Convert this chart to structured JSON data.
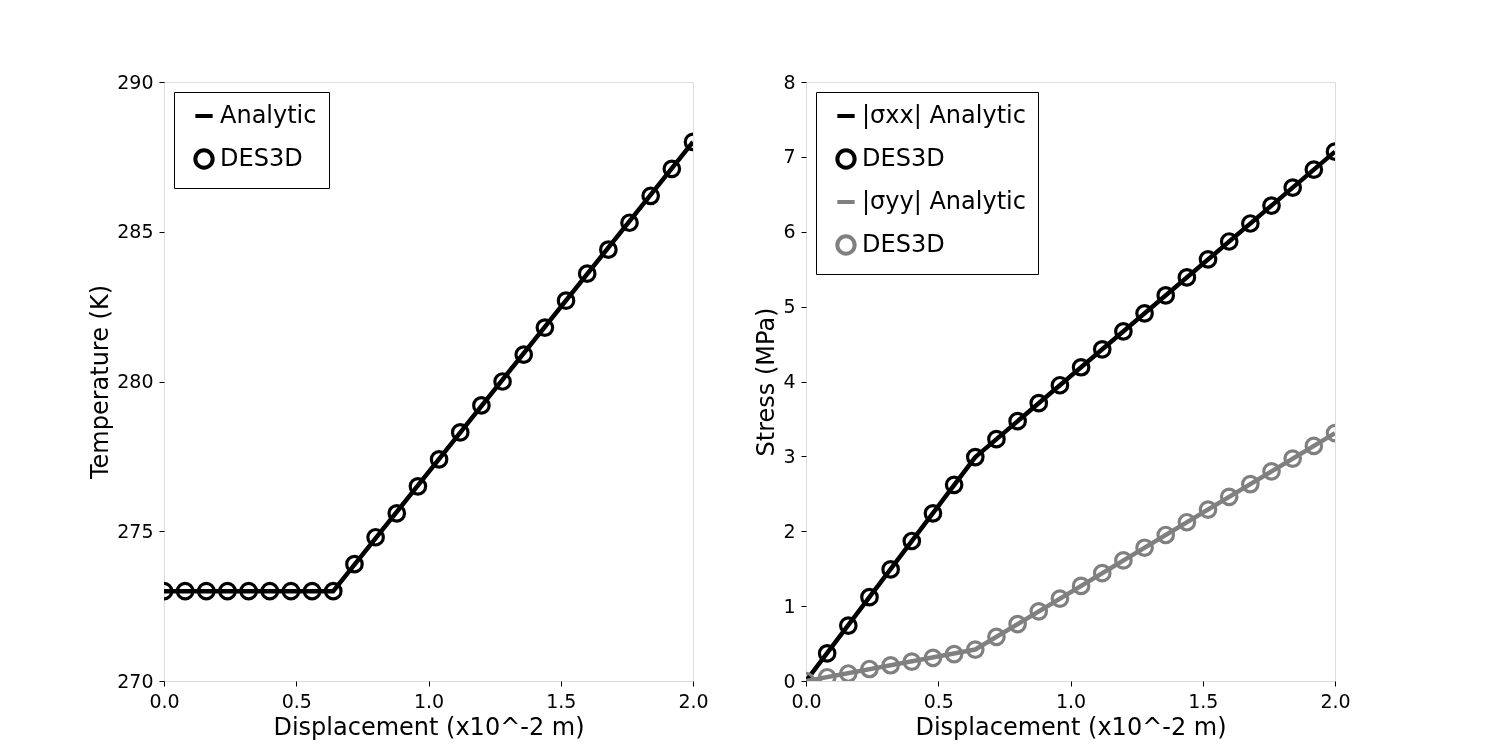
{
  "chart_data": [
    {
      "type": "line",
      "xlabel": "Displacement (x10^-2 m)",
      "ylabel": "Temperature (K)",
      "xlim": [
        0,
        2
      ],
      "ylim": [
        270,
        290
      ],
      "xticks": [
        {
          "value": 0,
          "label": "0.0"
        },
        {
          "value": 0.5,
          "label": "0.5"
        },
        {
          "value": 1,
          "label": "1.0"
        },
        {
          "value": 1.5,
          "label": "1.5"
        },
        {
          "value": 2,
          "label": "2.0"
        }
      ],
      "yticks": [
        270,
        275,
        280,
        285,
        290
      ],
      "legend": "top left",
      "x": [
        0,
        0.08,
        0.16,
        0.24,
        0.32,
        0.4,
        0.48,
        0.56,
        0.64,
        0.72,
        0.8,
        0.88,
        0.96,
        1.04,
        1.12,
        1.2,
        1.28,
        1.36,
        1.44,
        1.52,
        1.6,
        1.68,
        1.76,
        1.84,
        1.92,
        2.0
      ],
      "series": [
        {
          "name": "Analytic",
          "type": "line",
          "color": "#000000",
          "x": [
            0,
            0.64,
            2.0
          ],
          "values": [
            273,
            273,
            288
          ]
        },
        {
          "name": "DES3D",
          "type": "scatter",
          "marker": "circle",
          "color": "#000000",
          "values": [
            273,
            273,
            273,
            273,
            273,
            273,
            273,
            273,
            273,
            273.9,
            274.8,
            275.6,
            276.5,
            277.4,
            278.3,
            279.2,
            280.0,
            280.9,
            281.8,
            282.7,
            283.6,
            284.4,
            285.3,
            286.2,
            287.1,
            288.0
          ]
        }
      ]
    },
    {
      "type": "line",
      "xlabel": "Displacement (x10^-2 m)",
      "ylabel": "Stress (MPa)",
      "xlim": [
        0,
        2
      ],
      "ylim": [
        0,
        8
      ],
      "xticks": [
        {
          "value": 0,
          "label": "0.0"
        },
        {
          "value": 0.5,
          "label": "0.5"
        },
        {
          "value": 1,
          "label": "1.0"
        },
        {
          "value": 1.5,
          "label": "1.5"
        },
        {
          "value": 2,
          "label": "2.0"
        }
      ],
      "yticks": [
        0,
        1,
        2,
        3,
        4,
        5,
        6,
        7,
        8
      ],
      "legend": "top left",
      "x": [
        0,
        0.08,
        0.16,
        0.24,
        0.32,
        0.4,
        0.48,
        0.56,
        0.64,
        0.72,
        0.8,
        0.88,
        0.96,
        1.04,
        1.12,
        1.2,
        1.28,
        1.36,
        1.44,
        1.52,
        1.6,
        1.68,
        1.76,
        1.84,
        1.92,
        2.0
      ],
      "series": [
        {
          "name": "|σxx| Analytic",
          "type": "line",
          "color": "#000000",
          "x": [
            0,
            0.64,
            2.0
          ],
          "values": [
            0,
            2.99,
            7.07
          ]
        },
        {
          "name": "DES3D",
          "type": "scatter",
          "marker": "circle",
          "color": "#000000",
          "values": [
            null,
            0.37,
            0.74,
            1.12,
            1.49,
            1.87,
            2.24,
            2.62,
            2.99,
            3.23,
            3.47,
            3.71,
            3.95,
            4.19,
            4.43,
            4.67,
            4.91,
            5.15,
            5.39,
            5.63,
            5.87,
            6.11,
            6.35,
            6.59,
            6.83,
            7.07
          ]
        },
        {
          "name": "|σyy| Analytic",
          "type": "line",
          "color": "#808080",
          "x": [
            0,
            0.64,
            2.0
          ],
          "values": [
            0,
            0.42,
            3.31
          ]
        },
        {
          "name": "DES3D",
          "type": "scatter",
          "marker": "circle",
          "color": "#808080",
          "values": [
            0,
            0.05,
            0.1,
            0.16,
            0.21,
            0.26,
            0.31,
            0.36,
            0.42,
            0.59,
            0.76,
            0.93,
            1.1,
            1.27,
            1.44,
            1.61,
            1.78,
            1.95,
            2.12,
            2.29,
            2.46,
            2.63,
            2.8,
            2.97,
            3.14,
            3.31
          ]
        }
      ]
    }
  ]
}
